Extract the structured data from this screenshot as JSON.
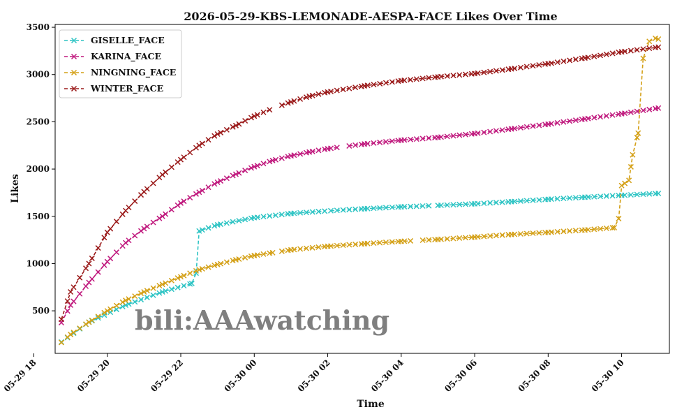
{
  "chart_data": {
    "type": "line",
    "title": "2026-05-29-KBS-LEMONADE-AESPA-FACE Likes Over Time",
    "xlabel": "Time",
    "ylabel": "Likes",
    "xlim": [
      18.58,
      35.3
    ],
    "ylim": [
      50,
      3530
    ],
    "x_ticks": [
      {
        "value": 18,
        "label": "05-29 18"
      },
      {
        "value": 20,
        "label": "05-29 20"
      },
      {
        "value": 22,
        "label": "05-29 22"
      },
      {
        "value": 24,
        "label": "05-30 00"
      },
      {
        "value": 26,
        "label": "05-30 02"
      },
      {
        "value": 28,
        "label": "05-30 04"
      },
      {
        "value": 30,
        "label": "05-30 06"
      },
      {
        "value": 32,
        "label": "05-30 08"
      },
      {
        "value": 34,
        "label": "05-30 10"
      }
    ],
    "y_ticks": [
      {
        "value": 500,
        "label": "500"
      },
      {
        "value": 1000,
        "label": "1000"
      },
      {
        "value": 1500,
        "label": "1500"
      },
      {
        "value": 2000,
        "label": "2000"
      },
      {
        "value": 2500,
        "label": "2500"
      },
      {
        "value": 3000,
        "label": "3000"
      },
      {
        "value": 3500,
        "label": "3500"
      }
    ],
    "grid": false,
    "legend": "top-left",
    "watermark": "bili:AAAwatching",
    "series": [
      {
        "name": "GISELLE_FACE",
        "color": "#2ec4c4",
        "anchors": [
          [
            18.75,
            170
          ],
          [
            19.5,
            380
          ],
          [
            20.5,
            560
          ],
          [
            21.5,
            700
          ],
          [
            22.3,
            790
          ],
          [
            22.4,
            805
          ],
          [
            22.5,
            1345
          ],
          [
            23.0,
            1410
          ],
          [
            24.0,
            1485
          ],
          [
            25.0,
            1530
          ],
          [
            26.0,
            1557
          ],
          [
            27.0,
            1580
          ],
          [
            28.0,
            1600
          ],
          [
            29.0,
            1615
          ],
          [
            30.0,
            1632
          ],
          [
            31.0,
            1655
          ],
          [
            32.0,
            1680
          ],
          [
            33.0,
            1702
          ],
          [
            34.0,
            1722
          ],
          [
            35.0,
            1742
          ]
        ],
        "gaps": [
          [
            25.95,
            26.05
          ],
          [
            28.9,
            29.0
          ]
        ]
      },
      {
        "name": "KARINA_FACE",
        "color": "#c01a7e",
        "anchors": [
          [
            18.75,
            375
          ],
          [
            19.0,
            560
          ],
          [
            19.5,
            800
          ],
          [
            20.0,
            1020
          ],
          [
            20.5,
            1220
          ],
          [
            21.0,
            1370
          ],
          [
            21.5,
            1500
          ],
          [
            22.0,
            1640
          ],
          [
            22.5,
            1755
          ],
          [
            23.0,
            1860
          ],
          [
            23.5,
            1945
          ],
          [
            24.0,
            2025
          ],
          [
            24.5,
            2090
          ],
          [
            25.0,
            2140
          ],
          [
            25.5,
            2180
          ],
          [
            26.0,
            2215
          ],
          [
            27.0,
            2265
          ],
          [
            28.0,
            2305
          ],
          [
            29.0,
            2335
          ],
          [
            30.0,
            2375
          ],
          [
            31.0,
            2425
          ],
          [
            32.0,
            2475
          ],
          [
            33.0,
            2530
          ],
          [
            34.0,
            2585
          ],
          [
            35.0,
            2645
          ]
        ],
        "gaps": [
          [
            26.3,
            26.45
          ]
        ]
      },
      {
        "name": "NINGNING_FACE",
        "color": "#d4a017",
        "anchors": [
          [
            18.75,
            165
          ],
          [
            19.0,
            250
          ],
          [
            19.5,
            380
          ],
          [
            20.0,
            500
          ],
          [
            20.5,
            610
          ],
          [
            21.0,
            700
          ],
          [
            21.5,
            780
          ],
          [
            22.0,
            860
          ],
          [
            22.5,
            935
          ],
          [
            23.0,
            990
          ],
          [
            23.5,
            1040
          ],
          [
            24.0,
            1085
          ],
          [
            24.5,
            1115
          ],
          [
            25.0,
            1145
          ],
          [
            26.0,
            1183
          ],
          [
            27.0,
            1210
          ],
          [
            28.0,
            1235
          ],
          [
            29.0,
            1255
          ],
          [
            30.0,
            1280
          ],
          [
            31.0,
            1308
          ],
          [
            32.0,
            1330
          ],
          [
            33.0,
            1355
          ],
          [
            33.8,
            1380
          ],
          [
            33.9,
            1390
          ],
          [
            34.0,
            1825
          ],
          [
            34.2,
            1880
          ],
          [
            34.3,
            2150
          ],
          [
            34.45,
            2380
          ],
          [
            34.6,
            3250
          ],
          [
            34.75,
            3350
          ],
          [
            34.9,
            3385
          ],
          [
            35.0,
            3375
          ]
        ],
        "gaps": [
          [
            24.5,
            24.6
          ],
          [
            28.4,
            28.55
          ]
        ]
      },
      {
        "name": "WINTER_FACE",
        "color": "#9b1b1b",
        "anchors": [
          [
            18.75,
            410
          ],
          [
            19.0,
            700
          ],
          [
            19.5,
            1000
          ],
          [
            20.0,
            1330
          ],
          [
            20.5,
            1560
          ],
          [
            21.0,
            1760
          ],
          [
            21.5,
            1940
          ],
          [
            22.0,
            2100
          ],
          [
            22.5,
            2250
          ],
          [
            23.0,
            2370
          ],
          [
            23.5,
            2460
          ],
          [
            24.0,
            2560
          ],
          [
            24.5,
            2640
          ],
          [
            25.0,
            2710
          ],
          [
            25.5,
            2770
          ],
          [
            26.0,
            2815
          ],
          [
            27.0,
            2880
          ],
          [
            28.0,
            2935
          ],
          [
            29.0,
            2975
          ],
          [
            30.0,
            3010
          ],
          [
            31.0,
            3060
          ],
          [
            32.0,
            3115
          ],
          [
            33.0,
            3175
          ],
          [
            34.0,
            3240
          ],
          [
            35.0,
            3290
          ]
        ],
        "gaps": [
          [
            24.45,
            24.6
          ]
        ]
      }
    ]
  }
}
